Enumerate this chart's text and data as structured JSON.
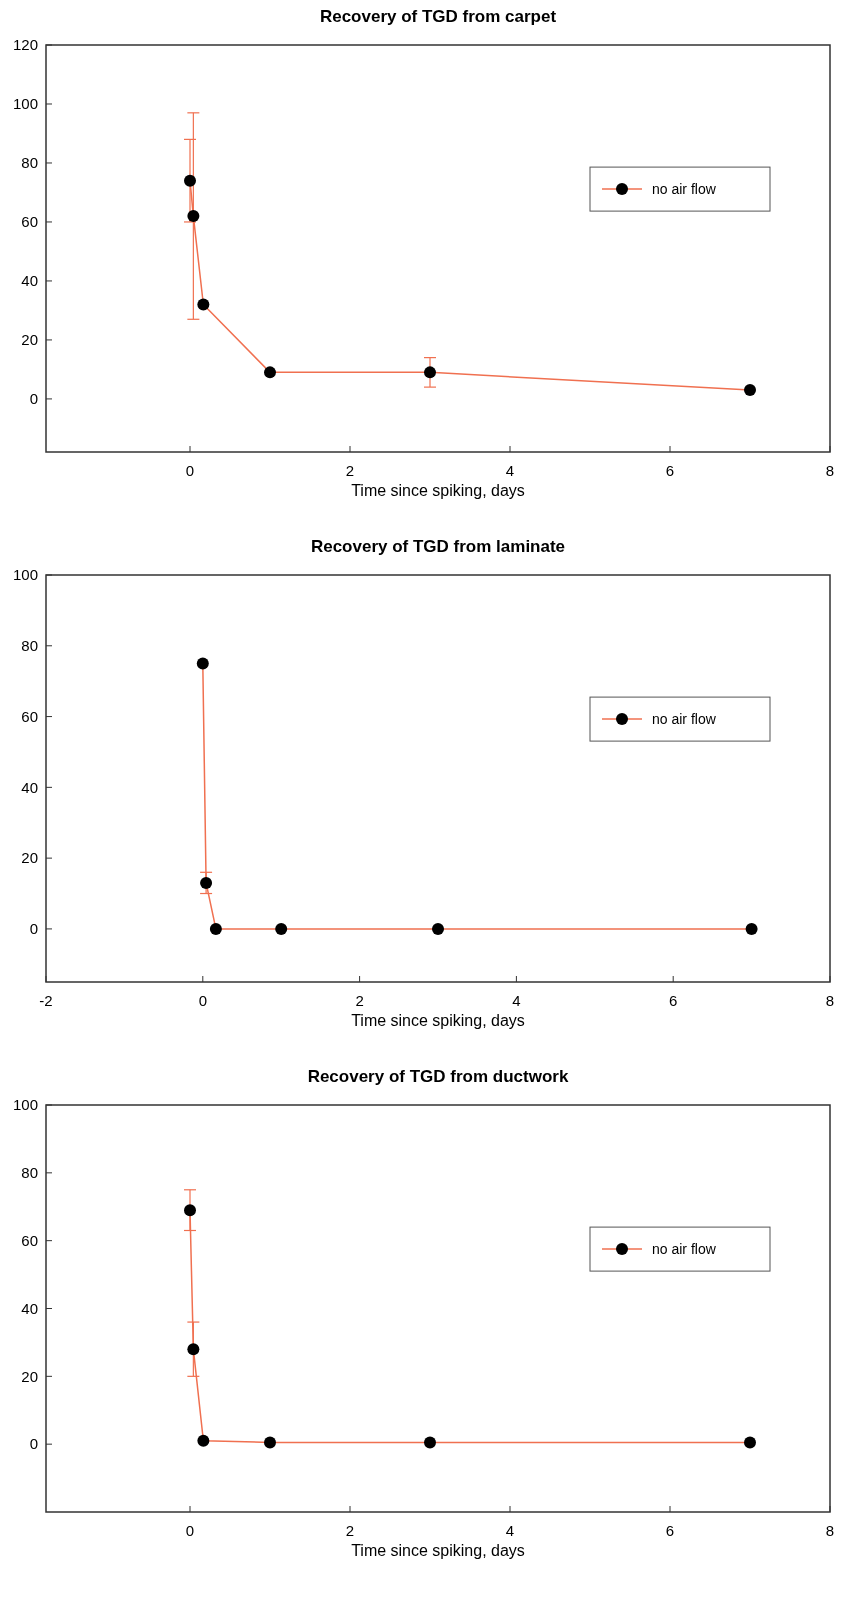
{
  "chart_data": [
    {
      "type": "line",
      "title": "Recovery of TGD from carpet",
      "xlabel": "Time since spiking, days",
      "xlim": [
        -1.8,
        8
      ],
      "xticks": [
        0,
        2,
        4,
        6,
        8
      ],
      "ylim": [
        -18,
        120
      ],
      "yticks": [
        0,
        20,
        40,
        60,
        80,
        100,
        120
      ],
      "legend": "right",
      "marker": "circle",
      "grid": false,
      "series": [
        {
          "name": "no air flow",
          "color": "#f07050",
          "x": [
            0,
            0.042,
            0.167,
            1,
            3,
            7
          ],
          "values": [
            74,
            62,
            32,
            9,
            9,
            3
          ],
          "errors": [
            14,
            35,
            null,
            null,
            5,
            null
          ]
        }
      ]
    },
    {
      "type": "line",
      "title": "Recovery of TGD from laminate",
      "xlabel": "Time since spiking, days",
      "xlim": [
        -2,
        8
      ],
      "xticks": [
        -2,
        0,
        2,
        4,
        6,
        8
      ],
      "ylim": [
        -15,
        100
      ],
      "yticks": [
        0,
        20,
        40,
        60,
        80,
        100
      ],
      "legend": "right",
      "marker": "circle",
      "grid": false,
      "series": [
        {
          "name": "no air flow",
          "color": "#f07050",
          "x": [
            0,
            0.042,
            0.167,
            1,
            3,
            7
          ],
          "values": [
            75,
            13,
            0,
            0,
            0,
            0
          ],
          "errors": [
            null,
            3,
            null,
            null,
            null,
            null
          ]
        }
      ]
    },
    {
      "type": "line",
      "title": "Recovery of TGD from ductwork",
      "xlabel": "Time since spiking, days",
      "xlim": [
        -1.8,
        8
      ],
      "xticks": [
        0,
        2,
        4,
        6,
        8
      ],
      "ylim": [
        -20,
        100
      ],
      "yticks": [
        0,
        20,
        40,
        60,
        80,
        100
      ],
      "legend": "right",
      "marker": "circle",
      "grid": false,
      "series": [
        {
          "name": "no air flow",
          "color": "#f07050",
          "x": [
            0,
            0.042,
            0.167,
            1,
            3,
            7
          ],
          "values": [
            69,
            28,
            1,
            0.5,
            0.5,
            0.5
          ],
          "errors": [
            6,
            8,
            null,
            null,
            null,
            null
          ]
        }
      ]
    }
  ]
}
